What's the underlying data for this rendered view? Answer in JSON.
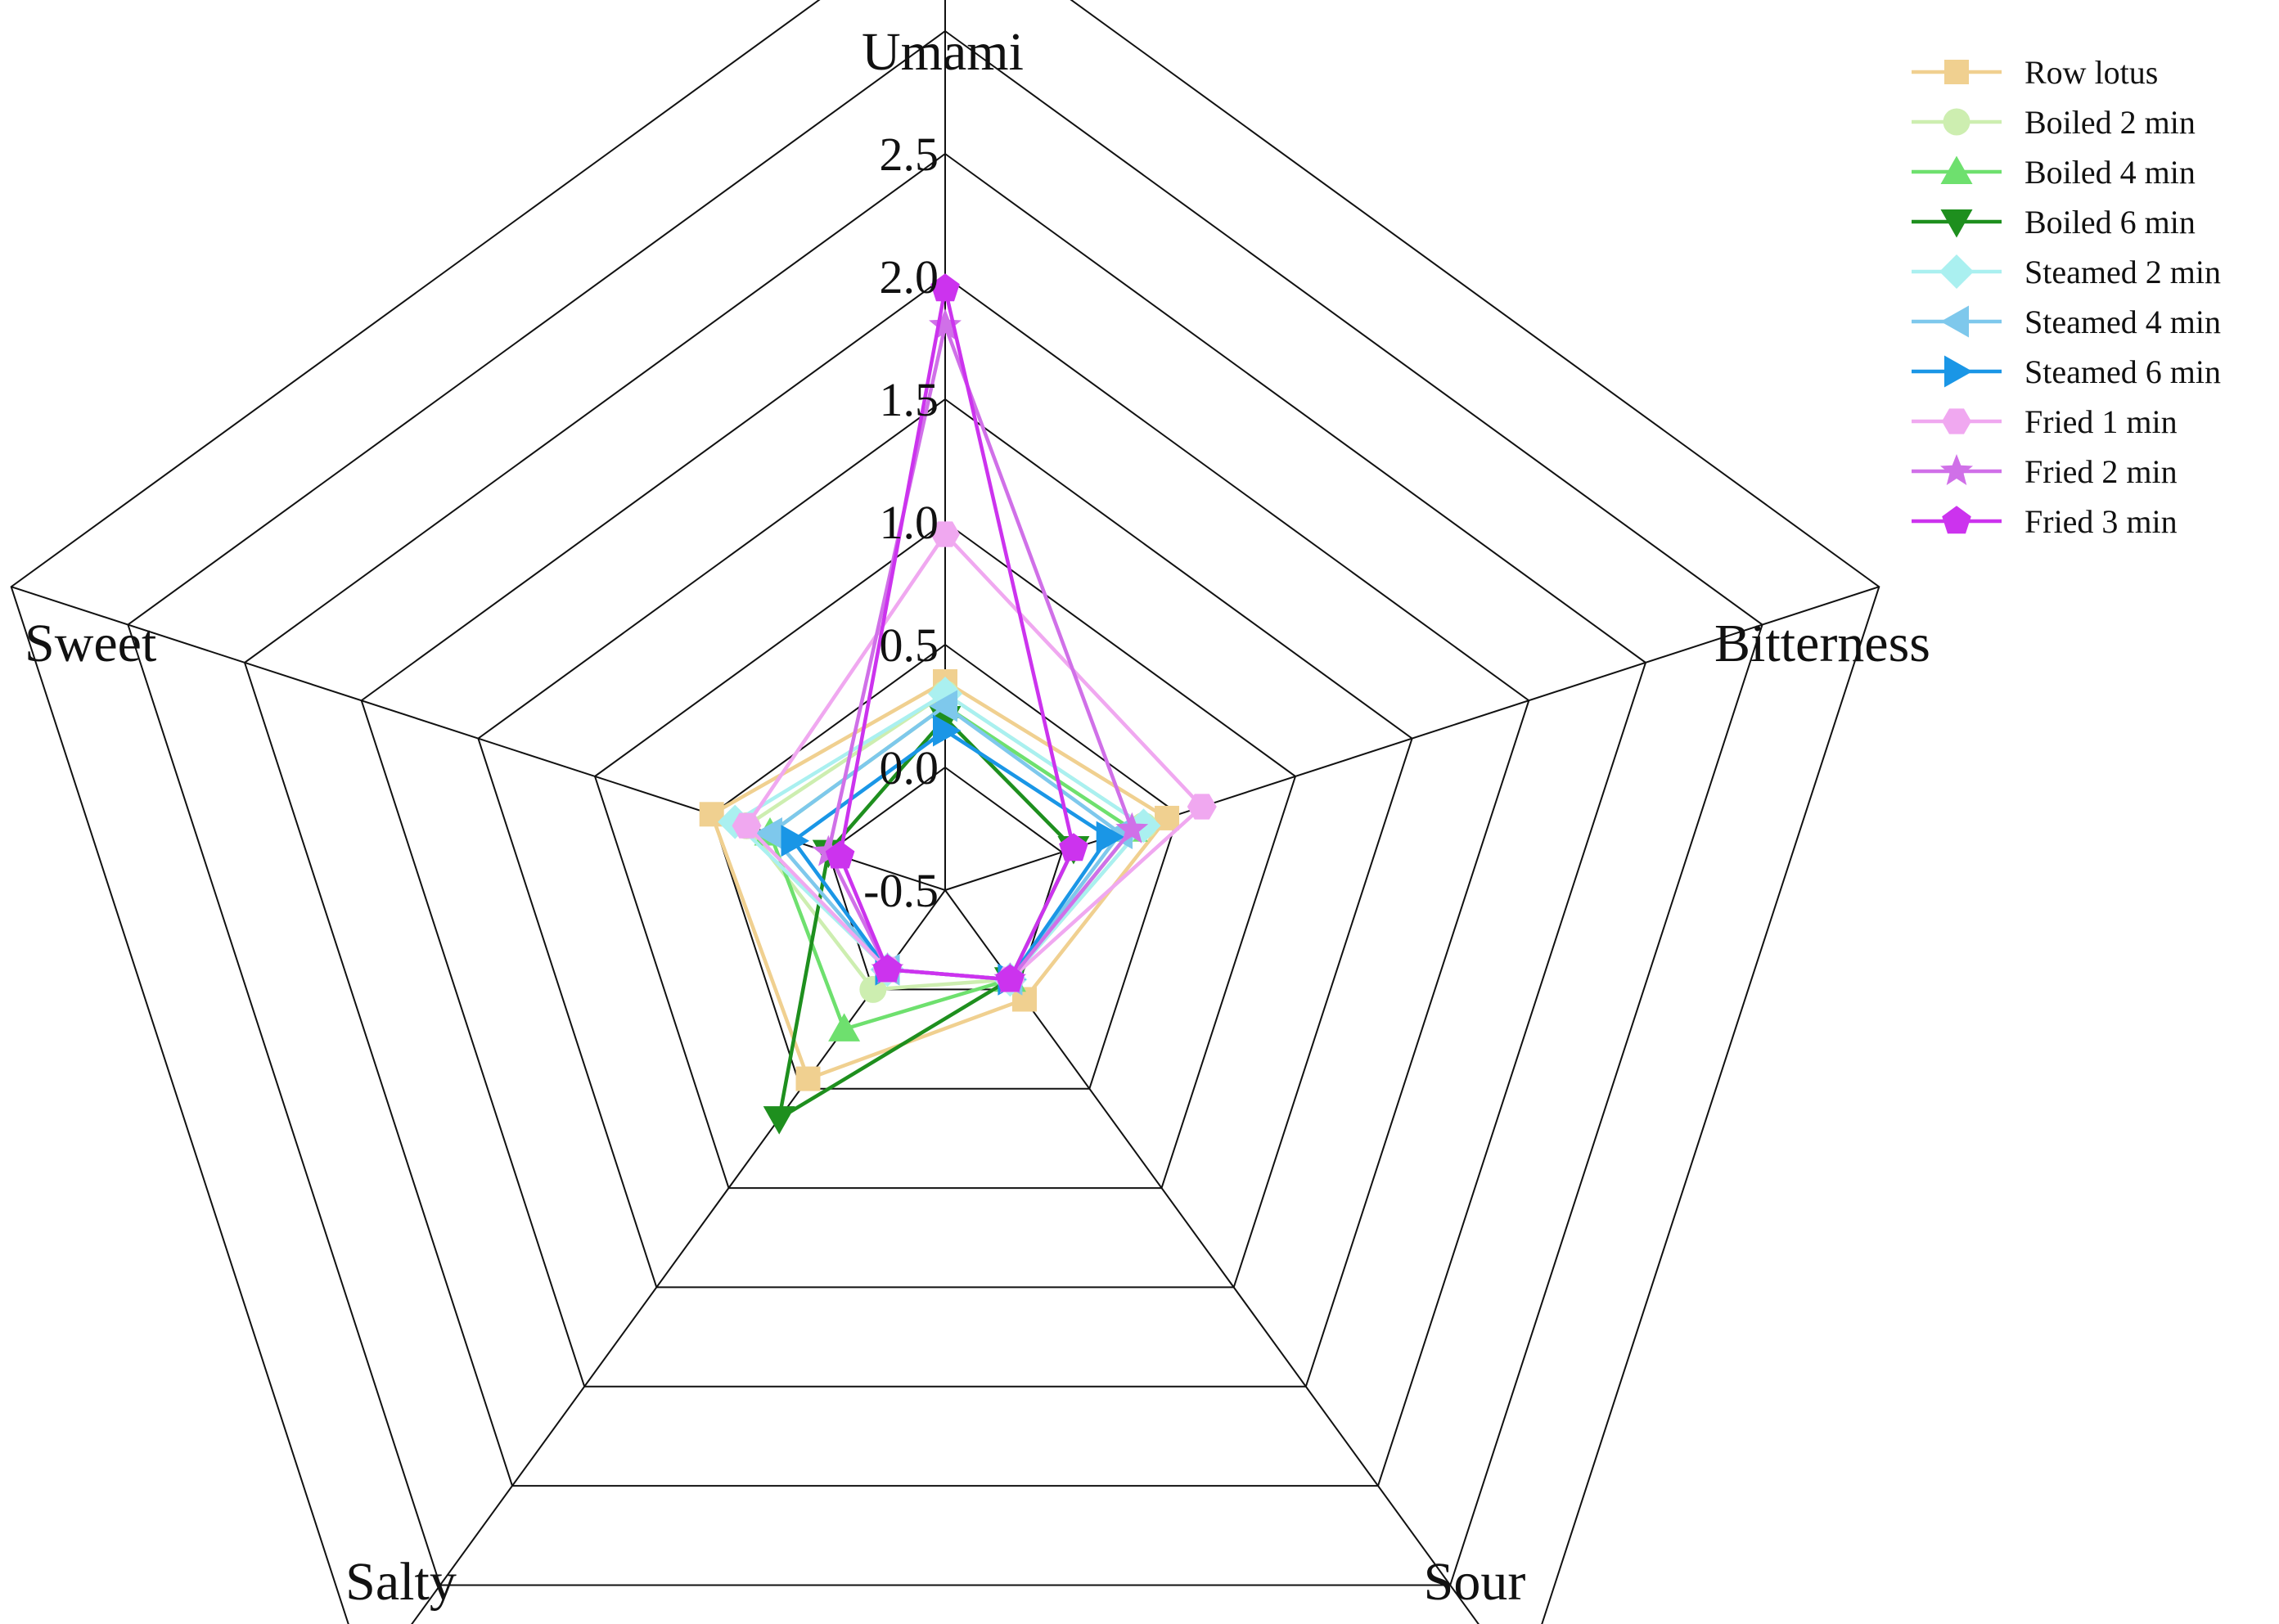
{
  "chart_data": {
    "type": "radar",
    "title": "",
    "axes": [
      "Umami",
      "Bitterness",
      "Sour",
      "Salty",
      "Sweet"
    ],
    "range": [
      -0.5,
      2.5
    ],
    "ticks": [
      "-0.5",
      "0.0",
      "0.5",
      "1.0",
      "1.5",
      "2.0",
      "2.5"
    ],
    "tick_values": [
      -0.5,
      0.0,
      0.5,
      1.0,
      1.5,
      2.0,
      2.5
    ],
    "outer_rings": 2,
    "legend_position": "top-right",
    "series": [
      {
        "name": "Row lotus",
        "color": "#f0d090",
        "marker": "square",
        "values": [
          0.35,
          0.45,
          0.05,
          0.45,
          0.5
        ]
      },
      {
        "name": "Boiled 2 min",
        "color": "#cdeeb0",
        "marker": "circle",
        "values": [
          0.3,
          0.35,
          -0.05,
          0.0,
          0.35
        ]
      },
      {
        "name": "Boiled 4 min",
        "color": "#6ee06e",
        "marker": "triangle-up",
        "values": [
          0.25,
          0.3,
          -0.05,
          0.2,
          0.25
        ]
      },
      {
        "name": "Boiled 6 min",
        "color": "#1e8f1e",
        "marker": "triangle-down",
        "values": [
          0.2,
          0.05,
          -0.05,
          0.65,
          0.0
        ]
      },
      {
        "name": "Steamed 2 min",
        "color": "#aaf0f0",
        "marker": "diamond",
        "values": [
          0.3,
          0.35,
          -0.05,
          -0.1,
          0.4
        ]
      },
      {
        "name": "Steamed 4 min",
        "color": "#7ec8ec",
        "marker": "triangle-left",
        "values": [
          0.25,
          0.25,
          -0.05,
          -0.1,
          0.25
        ]
      },
      {
        "name": "Steamed 6 min",
        "color": "#1a96e6",
        "marker": "triangle-right",
        "values": [
          0.15,
          0.2,
          -0.05,
          -0.1,
          0.15
        ]
      },
      {
        "name": "Fried 1 min",
        "color": "#f0a8f0",
        "marker": "hexagon",
        "values": [
          0.95,
          0.6,
          -0.05,
          -0.1,
          0.35
        ]
      },
      {
        "name": "Fried 2 min",
        "color": "#d070e8",
        "marker": "star",
        "values": [
          1.8,
          0.3,
          -0.05,
          -0.1,
          0.0
        ]
      },
      {
        "name": "Fried 3 min",
        "color": "#cc33ee",
        "marker": "pentagon",
        "values": [
          1.95,
          0.05,
          -0.05,
          -0.1,
          -0.05
        ]
      }
    ]
  }
}
